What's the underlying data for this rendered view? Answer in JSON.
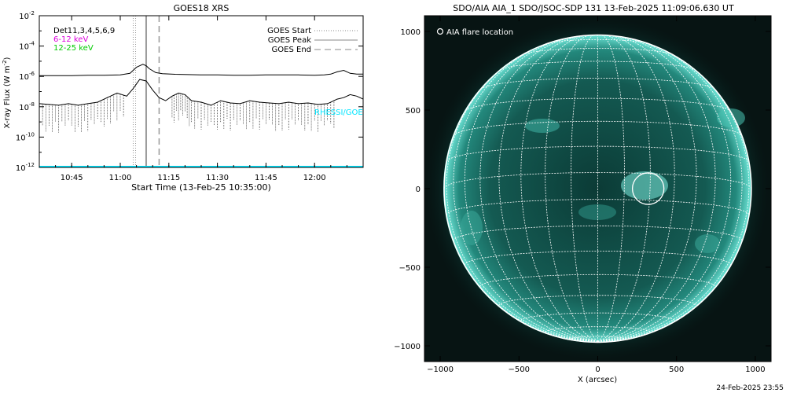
{
  "footer": {
    "timestamp": "24-Feb-2025 23:55"
  },
  "chart_data": [
    {
      "type": "line",
      "title": "GOES18 XRS",
      "xlabel": "Start Time (13-Feb-25 10:35:00)",
      "ylabel_main": "X-ray Flux (W m",
      "ylabel_exp": "-2",
      "ylabel_close": ")",
      "yscale": "log",
      "ylim": [
        1e-12,
        0.01
      ],
      "y_tick_labels": [
        {
          "base": "10",
          "exp": "-12",
          "v": -12
        },
        {
          "base": "10",
          "exp": "-10",
          "v": -10
        },
        {
          "base": "10",
          "exp": "-8",
          "v": -8
        },
        {
          "base": "10",
          "exp": "-6",
          "v": -6
        },
        {
          "base": "10",
          "exp": "-4",
          "v": -4
        },
        {
          "base": "10",
          "exp": "-2",
          "v": -2
        }
      ],
      "x_range_minutes": [
        0,
        100
      ],
      "x_ticks": [
        {
          "label": "10:45",
          "m": 10
        },
        {
          "label": "11:00",
          "m": 25
        },
        {
          "label": "11:15",
          "m": 40
        },
        {
          "label": "11:30",
          "m": 55
        },
        {
          "label": "11:45",
          "m": 70
        },
        {
          "label": "12:00",
          "m": 85
        }
      ],
      "channel_labels": [
        {
          "text": "Det11,3,4,5,6,9",
          "color": "#000000"
        },
        {
          "text": "6-12 keV",
          "color": "#dd00dd"
        },
        {
          "text": "12-25 keV",
          "color": "#00cc00"
        }
      ],
      "legend": [
        {
          "name": "GOES Start",
          "style": "dotted",
          "color": "#888888"
        },
        {
          "name": "GOES Peak",
          "style": "solid",
          "color": "#888888"
        },
        {
          "name": "GOES End",
          "style": "dashed",
          "color": "#888888"
        }
      ],
      "legend_position": "top-right",
      "vlines_minutes": {
        "start": 29,
        "peak": 33,
        "end": 37
      },
      "cyan_label": "RHESSI/GOES-B",
      "cyan_level": -12,
      "series": [
        {
          "color": "#000000",
          "x": [
            0,
            5,
            10,
            15,
            20,
            25,
            28,
            30,
            32,
            33,
            34,
            36,
            38,
            42,
            46,
            50,
            55,
            60,
            65,
            70,
            75,
            80,
            85,
            88,
            90,
            92,
            94,
            96,
            98,
            100
          ],
          "y": [
            -5.95,
            -5.95,
            -5.95,
            -5.93,
            -5.92,
            -5.9,
            -5.8,
            -5.4,
            -5.2,
            -5.3,
            -5.5,
            -5.75,
            -5.82,
            -5.86,
            -5.88,
            -5.9,
            -5.9,
            -5.92,
            -5.92,
            -5.9,
            -5.9,
            -5.9,
            -5.92,
            -5.9,
            -5.85,
            -5.7,
            -5.6,
            -5.8,
            -5.85,
            -5.85
          ]
        },
        {
          "color": "#000000",
          "x": [
            0,
            3,
            6,
            9,
            12,
            15,
            18,
            21,
            24,
            27,
            29,
            31,
            33,
            35,
            37,
            39,
            41,
            43,
            45,
            47,
            50,
            53,
            56,
            59,
            62,
            65,
            68,
            71,
            74,
            77,
            80,
            83,
            86,
            89,
            92,
            94,
            96,
            98,
            100
          ],
          "y": [
            -7.8,
            -7.85,
            -7.9,
            -7.8,
            -7.9,
            -7.8,
            -7.7,
            -7.4,
            -7.1,
            -7.3,
            -6.8,
            -6.2,
            -6.3,
            -6.9,
            -7.4,
            -7.6,
            -7.3,
            -7.1,
            -7.2,
            -7.6,
            -7.7,
            -7.9,
            -7.6,
            -7.75,
            -7.8,
            -7.6,
            -7.7,
            -7.75,
            -7.8,
            -7.7,
            -7.8,
            -7.75,
            -7.85,
            -7.8,
            -7.5,
            -7.4,
            -7.2,
            -7.3,
            -7.5
          ]
        }
      ]
    },
    {
      "type": "image",
      "title": "SDO/AIA AIA_1 SDO/JSOC-SDP 131 13-Feb-2025 11:09:06.630 UT",
      "xlabel": "X (arcsec)",
      "x_range": [
        -1100,
        1100
      ],
      "y_range": [
        -1100,
        1100
      ],
      "x_ticks": [
        {
          "label": "−1000",
          "v": -1000
        },
        {
          "label": "−500",
          "v": -500
        },
        {
          "label": "0",
          "v": 0
        },
        {
          "label": "500",
          "v": 500
        },
        {
          "label": "1000",
          "v": 1000
        }
      ],
      "y_ticks": [
        {
          "label": "−1000",
          "v": -1000
        },
        {
          "label": "−500",
          "v": -500
        },
        {
          "label": "0",
          "v": 0
        },
        {
          "label": "500",
          "v": 500
        },
        {
          "label": "1000",
          "v": 1000
        }
      ],
      "legend_label": "AIA flare location",
      "solar_radius_arcsec": 975,
      "flare_location": {
        "x": 320,
        "y": 0,
        "r": 100
      },
      "disk_color": "#1e6b63",
      "limb_color": "#6fe6d8"
    }
  ]
}
